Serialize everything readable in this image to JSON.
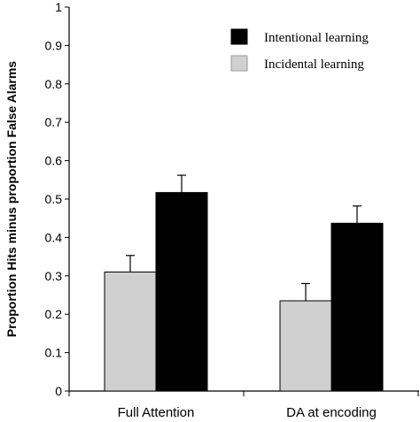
{
  "chart_data": {
    "type": "bar",
    "categories": [
      "Full Attention",
      "DA at encoding"
    ],
    "series": [
      {
        "name": "Incidental learning",
        "values": [
          0.31,
          0.235
        ],
        "errors": [
          0.043,
          0.045
        ],
        "color": "#d0d0d0"
      },
      {
        "name": "Intentional learning",
        "values": [
          0.517,
          0.437
        ],
        "errors": [
          0.045,
          0.045
        ],
        "color": "#000000"
      }
    ],
    "legend_order": [
      1,
      0
    ],
    "ylabel": "Proportion Hits minus proportion False Alarms",
    "xlabel": "",
    "ylim": [
      0,
      1
    ],
    "yticks": [
      "0",
      "0.1",
      "0.2",
      "0.3",
      "0.4",
      "0.5",
      "0.6",
      "0.7",
      "0.8",
      "0.9",
      "1"
    ],
    "grid": false,
    "legend_position": "top-right"
  }
}
